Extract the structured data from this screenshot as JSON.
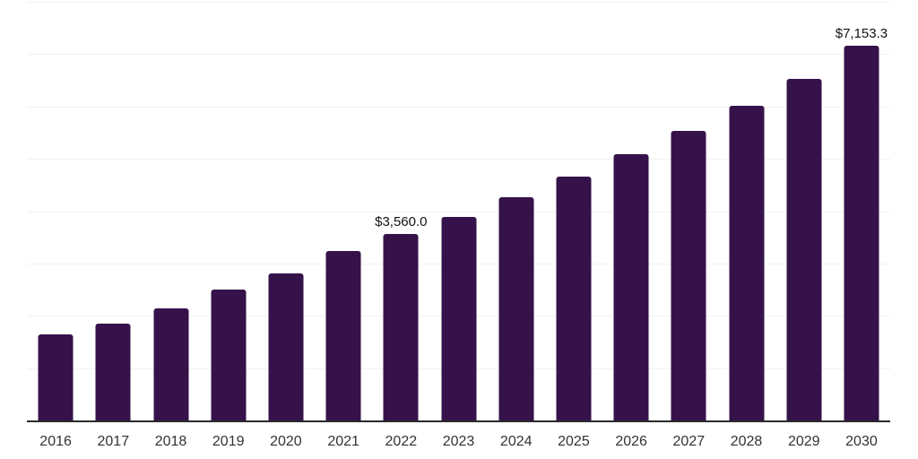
{
  "chart_data": {
    "type": "bar",
    "title": "",
    "xlabel": "",
    "ylabel": "",
    "categories": [
      "2016",
      "2017",
      "2018",
      "2019",
      "2020",
      "2021",
      "2022",
      "2023",
      "2024",
      "2025",
      "2026",
      "2027",
      "2028",
      "2029",
      "2030"
    ],
    "values": [
      1640,
      1845,
      2140,
      2500,
      2805,
      3245,
      3560.0,
      3890,
      4265,
      4655,
      5080,
      5540,
      6010,
      6530,
      7153.3
    ],
    "annotations": [
      {
        "category": "2022",
        "text": "$3,560.0"
      },
      {
        "category": "2030",
        "text": "$7,153.3"
      }
    ],
    "ylim": [
      0,
      8000
    ],
    "gridline_step": 1000,
    "grid": true,
    "legend": false,
    "y_axis_labels_visible": false,
    "colors": {
      "bar": "#36124a",
      "gridline": "#f2f2f2",
      "axis_line": "#2a2a2a",
      "tick_label": "#333333",
      "value_label": "#121212"
    }
  }
}
